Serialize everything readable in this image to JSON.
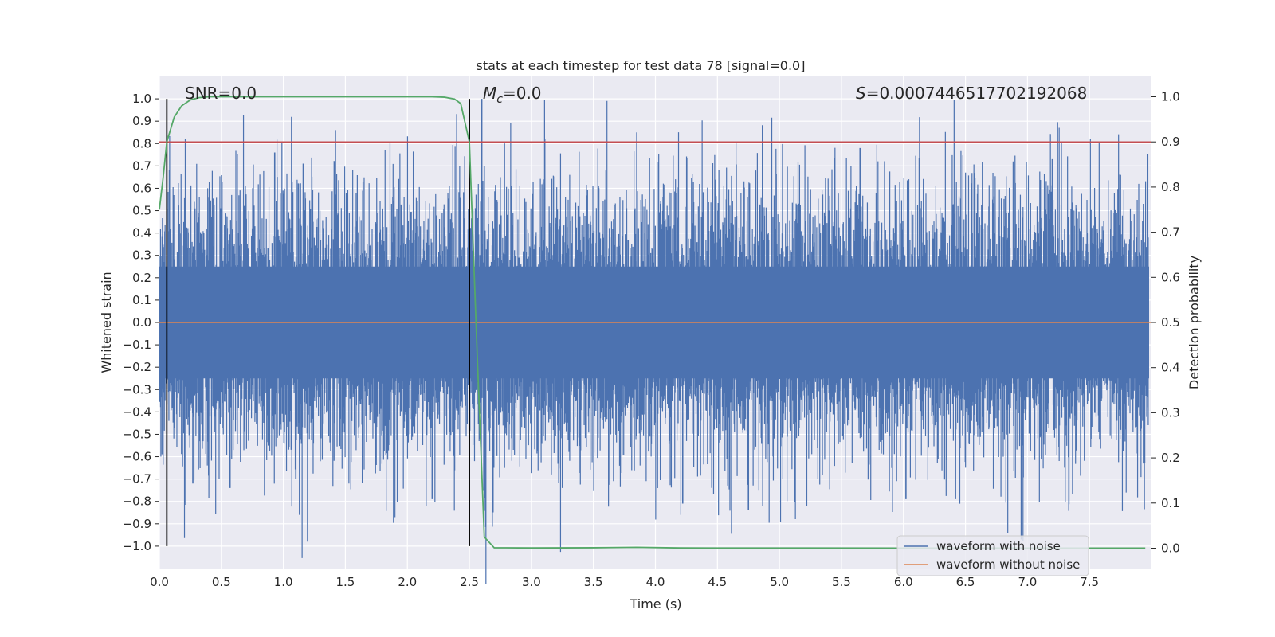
{
  "chart_data": {
    "type": "line",
    "title": "stats at each timestep for test data 78 [signal=0.0]",
    "xlabel": "Time (s)",
    "ylabel": "Whitened strain",
    "y2label": "Detection probability",
    "xlim": [
      0.0,
      8.0
    ],
    "ylim": [
      -1.1,
      1.1
    ],
    "y2lim": [
      -0.045,
      1.045
    ],
    "x_ticks": [
      "0.0",
      "0.5",
      "1.0",
      "1.5",
      "2.0",
      "2.5",
      "3.0",
      "3.5",
      "4.0",
      "4.5",
      "5.0",
      "5.5",
      "6.0",
      "6.5",
      "7.0",
      "7.5"
    ],
    "y_ticks": [
      "1.0",
      "0.9",
      "0.8",
      "0.7",
      "0.6",
      "0.5",
      "0.4",
      "0.3",
      "0.2",
      "0.1",
      "0.0",
      "−0.1",
      "−0.2",
      "−0.3",
      "−0.4",
      "−0.5",
      "−0.6",
      "−0.7",
      "−0.8",
      "−0.9",
      "−1.0"
    ],
    "y2_ticks": [
      "1.0",
      "0.9",
      "0.8",
      "0.7",
      "0.6",
      "0.5",
      "0.4",
      "0.3",
      "0.2",
      "0.1",
      "0.0"
    ],
    "annotations": {
      "snr": "SNR=0.0",
      "mc_symbol": "M",
      "mc_sub": "c",
      "mc_value": "=0.0",
      "s_symbol": "S",
      "s_value": "=0.0007446517702192068"
    },
    "vertical_lines_x": [
      0.06,
      2.5
    ],
    "threshold": 0.9,
    "noise_std": 0.2,
    "noise_spikes": [
      {
        "t": 0.93,
        "v": 0.76
      },
      {
        "t": 1.16,
        "v": 0.71
      },
      {
        "t": 2.6,
        "v": 1.0
      },
      {
        "t": 2.62,
        "v": 0.7
      },
      {
        "t": 3.85,
        "v": 0.85
      },
      {
        "t": 5.65,
        "v": 0.78
      },
      {
        "t": 7.2,
        "v": 0.73
      },
      {
        "t": 7.75,
        "v": 0.66
      },
      {
        "t": 1.13,
        "v": -0.86
      },
      {
        "t": 2.2,
        "v": -0.79
      },
      {
        "t": 0.27,
        "v": -0.72
      },
      {
        "t": 0.57,
        "v": -0.74
      },
      {
        "t": 4.22,
        "v": -0.81
      },
      {
        "t": 4.75,
        "v": -0.84
      },
      {
        "t": 6.02,
        "v": -0.79
      },
      {
        "t": 6.42,
        "v": -0.79
      },
      {
        "t": 6.95,
        "v": -0.97
      },
      {
        "t": 3.25,
        "v": -0.74
      }
    ],
    "series": [
      {
        "name": "waveform with noise",
        "color": "#4c72b0",
        "kind": "noise"
      },
      {
        "name": "waveform without noise",
        "color": "#dd8452",
        "kind": "flat",
        "value": 0.0
      },
      {
        "name": "detection probability",
        "color": "#55a868",
        "axis": "right",
        "x": [
          0.0,
          0.03,
          0.06,
          0.12,
          0.18,
          0.25,
          0.32,
          0.4,
          0.6,
          1.0,
          1.5,
          2.0,
          2.2,
          2.3,
          2.38,
          2.43,
          2.5,
          2.56,
          2.62,
          2.7,
          3.0,
          3.5,
          3.85,
          4.2,
          5.0,
          6.0,
          7.0,
          7.95
        ],
        "y": [
          0.75,
          0.82,
          0.9,
          0.955,
          0.98,
          0.993,
          0.998,
          1.0,
          1.0,
          1.0,
          1.0,
          1.0,
          1.0,
          0.999,
          0.995,
          0.985,
          0.9,
          0.45,
          0.025,
          0.001,
          0.0005,
          0.001,
          0.002,
          0.0005,
          0.0003,
          0.0002,
          0.0002,
          0.0002
        ]
      }
    ],
    "threshold_color": "#c44e52",
    "legend": [
      "waveform with noise",
      "waveform without noise"
    ],
    "legend_position": "lower-right",
    "grid": true
  }
}
